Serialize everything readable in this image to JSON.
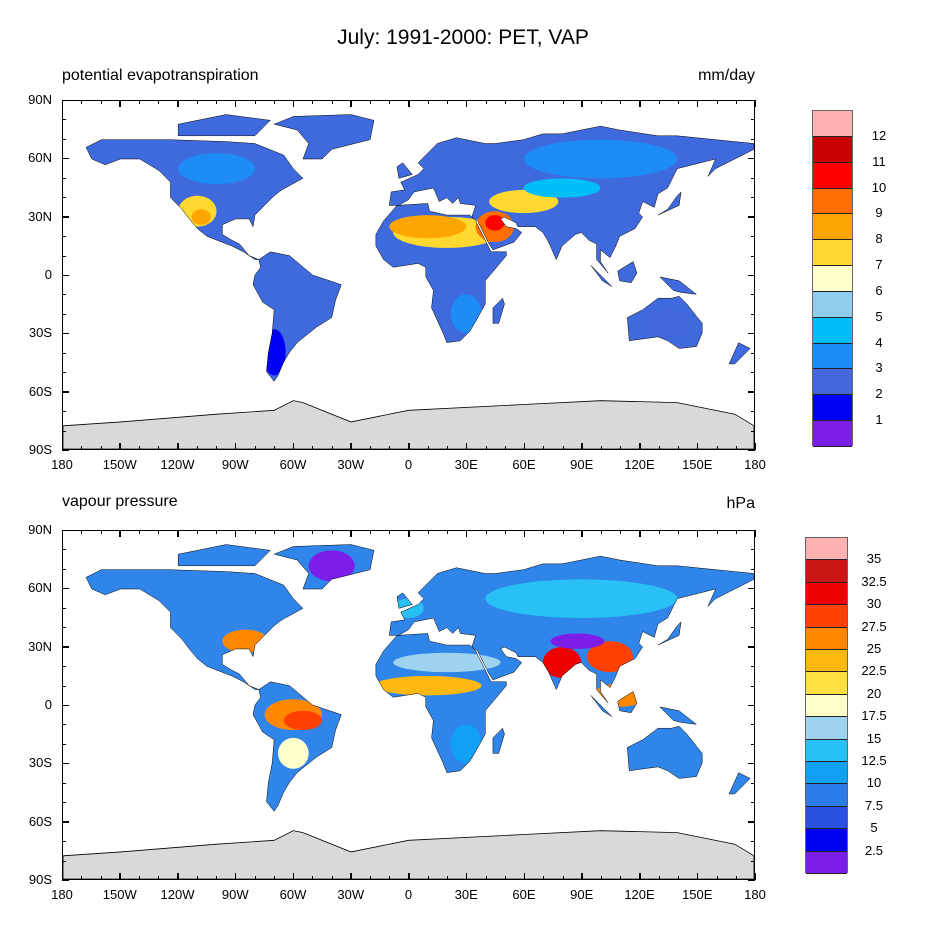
{
  "title": "July: 1991-2000: PET, VAP",
  "lat_labels": [
    "90N",
    "60N",
    "30N",
    "0",
    "30S",
    "60S",
    "90S"
  ],
  "lon_labels": [
    "180",
    "150W",
    "120W",
    "90W",
    "60W",
    "30W",
    "0",
    "30E",
    "60E",
    "90E",
    "120E",
    "150E",
    "180"
  ],
  "panels": [
    {
      "left_string": "potential evapotranspiration",
      "right_string": "mm/day",
      "colorbar": {
        "labels": [
          "1",
          "2",
          "3",
          "4",
          "5",
          "6",
          "7",
          "8",
          "9",
          "10",
          "11",
          "12"
        ],
        "colors": [
          "#7b1fe8",
          "#0000f8",
          "#4167da",
          "#1e8cf5",
          "#00bff8",
          "#8fcdef",
          "#ffffcc",
          "#ffd92f",
          "#ffa500",
          "#ff6e00",
          "#ff0000",
          "#c80000",
          "#ffb0b0"
        ]
      },
      "land_base_color": "#3f6ade"
    },
    {
      "left_string": "vapour pressure",
      "right_string": "hPa",
      "colorbar": {
        "labels": [
          "2.5",
          "5",
          "7.5",
          "10",
          "12.5",
          "15",
          "17.5",
          "20",
          "22.5",
          "25",
          "27.5",
          "30",
          "32.5",
          "35"
        ],
        "colors": [
          "#7b1fe8",
          "#0000f0",
          "#2a50e0",
          "#2a7de8",
          "#10a0f5",
          "#28c0f5",
          "#9dd3ef",
          "#ffffcc",
          "#ffe040",
          "#ffb810",
          "#ff8800",
          "#ff4000",
          "#ee0000",
          "#cc1515",
          "#ffb0b0"
        ]
      },
      "land_base_color": "#2f85ea"
    }
  ],
  "antarctica_color": "#d9d9d9"
}
